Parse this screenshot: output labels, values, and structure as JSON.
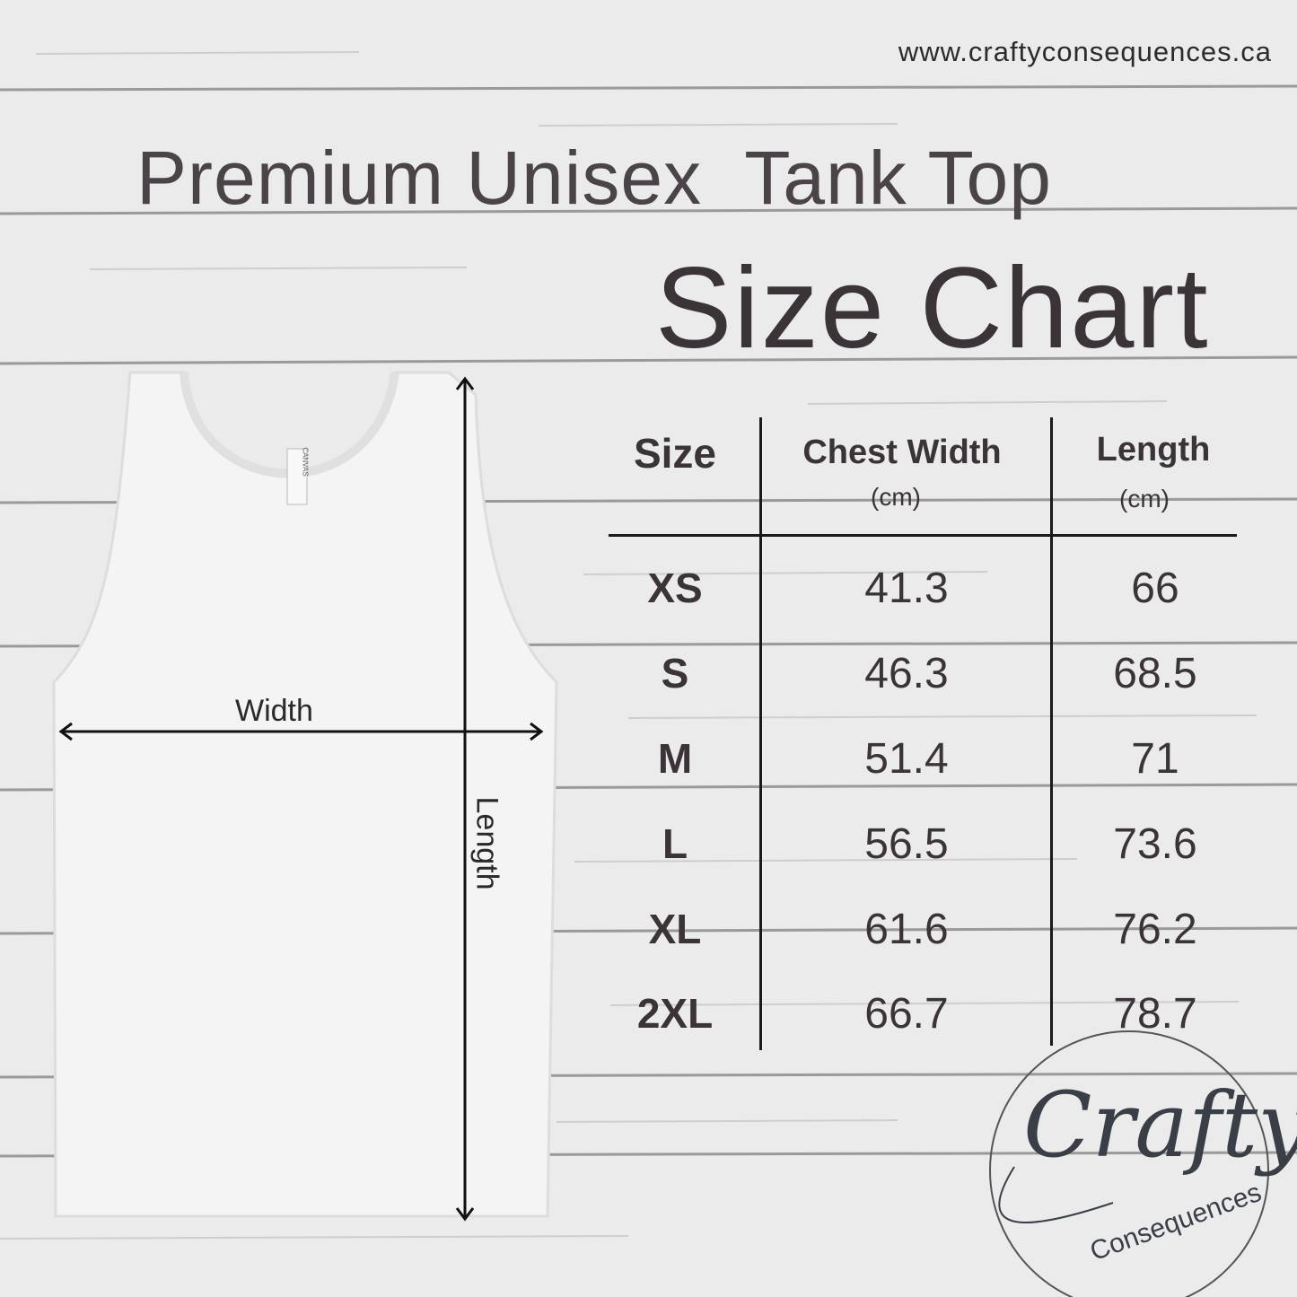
{
  "website": "www.craftyconsequences.ca",
  "title": "Premium Unisex  Tank Top",
  "subtitle": "Size Chart",
  "diagram": {
    "width_label": "Width",
    "length_label": "Length",
    "tag_text": "CANVAS"
  },
  "table": {
    "headers": [
      {
        "label": "Size",
        "unit": ""
      },
      {
        "label": "Chest Width",
        "unit": "(cm)"
      },
      {
        "label": "Length",
        "unit": "(cm)"
      }
    ],
    "rows": [
      {
        "size": "XS",
        "chest": "41.3",
        "length": "66"
      },
      {
        "size": "S",
        "chest": "46.3",
        "length": "68.5"
      },
      {
        "size": "M",
        "chest": "51.4",
        "length": "71"
      },
      {
        "size": "L",
        "chest": "56.5",
        "length": "73.6"
      },
      {
        "size": "XL",
        "chest": "61.6",
        "length": "76.2"
      },
      {
        "size": "2XL",
        "chest": "66.7",
        "length": "78.7"
      }
    ]
  },
  "logo": {
    "main": "Crafty",
    "sub": "Consequences"
  },
  "colors": {
    "text": "#3a3439",
    "background": "#e9e9e9",
    "lines": "#1a1a1a"
  }
}
